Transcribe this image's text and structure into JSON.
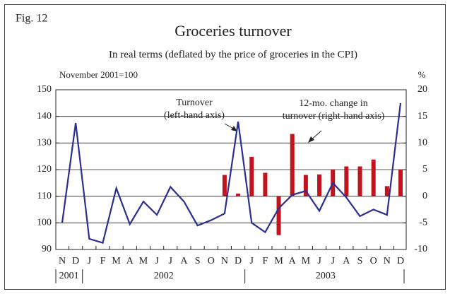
{
  "chart_data": {
    "type": "line_bar",
    "figure_label": "Fig. 12",
    "title": "Groceries turnover",
    "subtitle": "In real terms (deflated by the price of groceries in the CPI)",
    "y_label": "November 2001=100",
    "y2_label": "%",
    "categories": [
      "N",
      "D",
      "J",
      "F",
      "M",
      "A",
      "M",
      "J",
      "J",
      "A",
      "S",
      "O",
      "N",
      "D",
      "J",
      "F",
      "M",
      "A",
      "M",
      "J",
      "J",
      "A",
      "S",
      "O",
      "N",
      "D"
    ],
    "years": [
      "2001",
      "2002",
      "2003"
    ],
    "series": [
      {
        "name": "Turnover (left-hand axis)",
        "type": "line",
        "color": "#2b2f8f",
        "values": [
          100,
          137.5,
          94,
          92.5,
          113,
          99.5,
          108,
          103,
          113.5,
          108,
          99,
          101,
          103.5,
          138,
          100,
          96.5,
          105.5,
          110.5,
          112,
          104.5,
          115,
          109.5,
          102.5,
          105,
          103,
          145
        ]
      },
      {
        "name": "12-mo. change in turnover (right-hand axis)",
        "type": "bar",
        "axis": "y2",
        "color": "#c0141e",
        "values": [
          null,
          null,
          null,
          null,
          null,
          null,
          null,
          null,
          null,
          null,
          null,
          null,
          4,
          0.5,
          7.4,
          4.4,
          -7.3,
          11.7,
          4,
          4.1,
          5,
          5.6,
          5.6,
          6.9,
          1.9,
          5
        ]
      }
    ],
    "annotations": [
      {
        "lines": [
          "Turnover",
          "(left-hand axis)"
        ]
      },
      {
        "lines": [
          "12-mo. change in",
          "turnover (right-hand axis)"
        ]
      }
    ],
    "ylim": [
      90,
      150
    ],
    "yticks": [
      90,
      100,
      110,
      120,
      130,
      140,
      150
    ],
    "y2lim": [
      -10,
      20
    ],
    "y2ticks": [
      -10,
      -5,
      0,
      5,
      10,
      15,
      20
    ],
    "grid": true
  }
}
